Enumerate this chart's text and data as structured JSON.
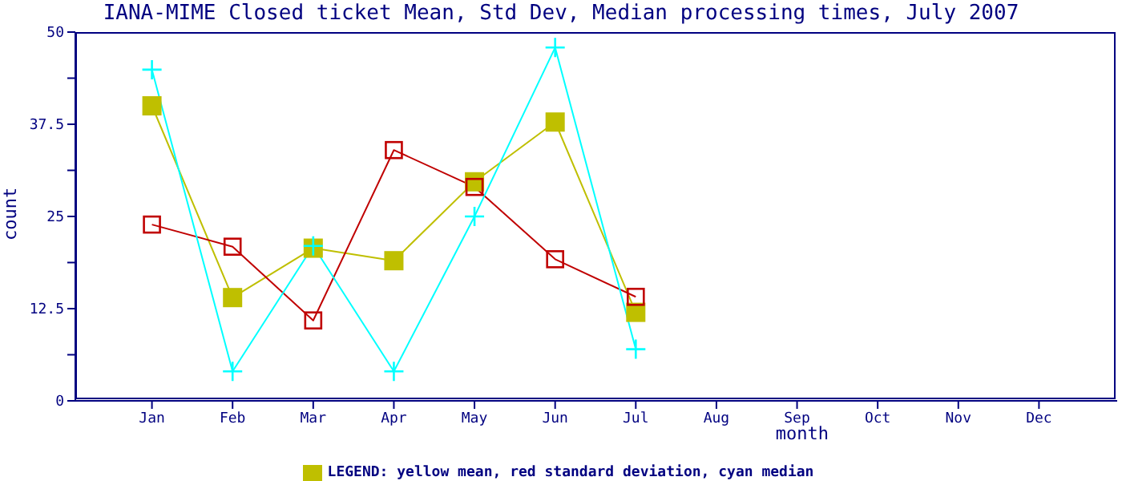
{
  "chart_data": {
    "type": "line",
    "title": "IANA-MIME Closed ticket Mean, Std Dev, Median processing times, July 2007",
    "xlabel": "month",
    "ylabel": "count",
    "categories": [
      "Jan",
      "Feb",
      "Mar",
      "Apr",
      "May",
      "Jun",
      "Jul",
      "Aug",
      "Sep",
      "Oct",
      "Nov",
      "Dec"
    ],
    "series": [
      {
        "name": "LEGEND: yellow mean, red standard deviation, cyan median",
        "color": "#bfbf00",
        "marker": "square",
        "values": [
          40,
          14,
          20.7,
          19,
          29.7,
          37.8,
          12,
          null,
          null,
          null,
          null,
          null
        ]
      },
      {
        "color": "#c00000",
        "marker": "square_open",
        "values": [
          23.9,
          20.9,
          10.9,
          34,
          29,
          19.2,
          14.1,
          null,
          null,
          null,
          null,
          null
        ]
      },
      {
        "color": "#00ffff",
        "marker": "cross",
        "values": [
          44.9,
          4,
          21,
          4,
          25,
          47.9,
          7,
          null,
          null,
          null,
          null,
          null
        ]
      }
    ],
    "ylim": [
      0,
      50
    ],
    "yticks": [
      0,
      {
        "value": 6.25,
        "label": null
      },
      12.5,
      {
        "value": 18.75,
        "label": null
      },
      25,
      {
        "value": 31.25,
        "label": null
      },
      37.5,
      {
        "value": 43.75,
        "label": null
      },
      50
    ],
    "legend": "bottom"
  }
}
